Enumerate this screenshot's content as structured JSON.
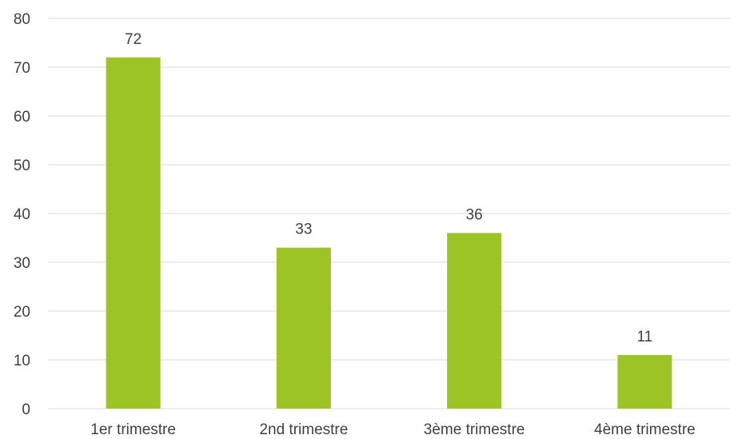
{
  "chart_data": {
    "type": "bar",
    "categories": [
      "1er trimestre",
      "2nd trimestre",
      "3ème trimestre",
      "4ème trimestre"
    ],
    "values": [
      72,
      33,
      36,
      11
    ],
    "title": "",
    "xlabel": "",
    "ylabel": "",
    "ylim": [
      0,
      80
    ],
    "yticks": [
      0,
      10,
      20,
      30,
      40,
      50,
      60,
      70,
      80
    ],
    "grid": true,
    "legend": "none",
    "data_labels": true,
    "bar_color": "#9bc424",
    "gridline_color": "#d9d9d9",
    "text_color": "#404040"
  }
}
